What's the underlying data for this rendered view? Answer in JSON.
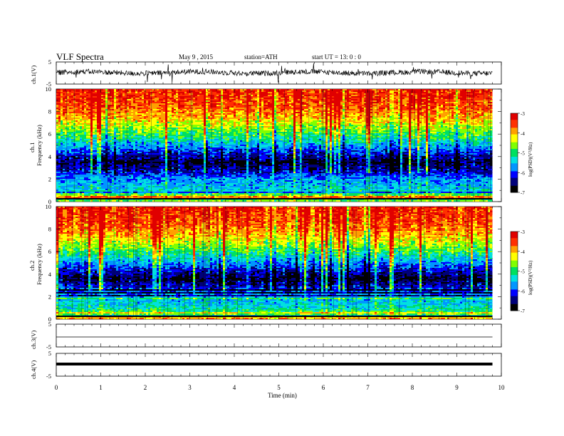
{
  "header": {
    "title": "VLF  Spectra",
    "date": "May 9  , 2015",
    "station": "station=ATH",
    "start": "start  UT  =     13: 0  : 0"
  },
  "chart_data": [
    {
      "type": "line",
      "panel": "ch1-waveform",
      "ylabel": "ch.1(V)",
      "yticks": [
        "5",
        "-5"
      ],
      "ylim": [
        -5,
        5
      ],
      "xlim": [
        0,
        10
      ],
      "data_extent_min": [
        0,
        9.8
      ],
      "description_values": {
        "baseline_v": 0.2,
        "typical_noise_amplitude_v": 1.2,
        "spike_max_v": 3.5
      }
    },
    {
      "type": "heatmap",
      "panel": "ch1-spectrogram",
      "ylabel": "Frequency  (kHz)",
      "channel_label": "ch.1",
      "yticks": [
        "0",
        "2",
        "4",
        "6",
        "8",
        "10"
      ],
      "ylim": [
        0,
        10
      ],
      "xlim": [
        0,
        10
      ],
      "data_extent_min": [
        0,
        9.8
      ],
      "colorbar": {
        "label": "log(PSD)(V²/Hz)",
        "ticks": [
          "-3",
          "-4",
          "-5",
          "-6",
          "-7"
        ],
        "range": [
          -7,
          -3
        ]
      },
      "profile_khz_logpsd": [
        [
          0,
          -3.8
        ],
        [
          0.5,
          -4.6
        ],
        [
          1,
          -5.4
        ],
        [
          2,
          -5.7
        ],
        [
          2.6,
          -6.2
        ],
        [
          3.5,
          -6.7
        ],
        [
          4.5,
          -6.0
        ],
        [
          5.5,
          -5.2
        ],
        [
          6.5,
          -4.6
        ],
        [
          7.5,
          -4.0
        ],
        [
          8.5,
          -3.6
        ],
        [
          10,
          -3.4
        ]
      ]
    },
    {
      "type": "heatmap",
      "panel": "ch2-spectrogram",
      "ylabel": "Frequency  (kHz)",
      "channel_label": "ch.2",
      "yticks": [
        "0",
        "2",
        "4",
        "6",
        "8",
        "10"
      ],
      "ylim": [
        0,
        10
      ],
      "xlim": [
        0,
        10
      ],
      "data_extent_min": [
        0,
        9.8
      ],
      "colorbar": {
        "label": "log(PSD)(V²/Hz)",
        "ticks": [
          "-3",
          "-4",
          "-5",
          "-6",
          "-7"
        ],
        "range": [
          -7,
          -3
        ]
      },
      "profile_khz_logpsd": [
        [
          0,
          -3.8
        ],
        [
          0.5,
          -4.8
        ],
        [
          1,
          -5.3
        ],
        [
          2,
          -5.6
        ],
        [
          3,
          -6.3
        ],
        [
          3.6,
          -6.7
        ],
        [
          4.5,
          -6.1
        ],
        [
          5.5,
          -5.3
        ],
        [
          6.5,
          -4.6
        ],
        [
          7.5,
          -4.0
        ],
        [
          8.5,
          -3.6
        ],
        [
          10,
          -3.4
        ]
      ]
    },
    {
      "type": "line",
      "panel": "ch3-waveform",
      "ylabel": "ch.3(V)",
      "yticks": [
        "5",
        "-5"
      ],
      "ylim": [
        -5,
        5
      ],
      "xlim": [
        0,
        10
      ],
      "data_extent_min": [
        0,
        9.8
      ],
      "description_values": {
        "baseline_v": 0.0
      }
    },
    {
      "type": "line",
      "panel": "ch4-waveform",
      "ylabel": "ch.4(V)",
      "yticks": [
        "5",
        "-5"
      ],
      "ylim": [
        -5,
        5
      ],
      "xlim": [
        0,
        10
      ],
      "data_extent_min": [
        0,
        9.8
      ],
      "description_values": {
        "baseline_v": 0.0
      }
    }
  ],
  "xaxis": {
    "label": "Time  (min)",
    "ticks": [
      "0",
      "1",
      "2",
      "3",
      "4",
      "5",
      "6",
      "7",
      "8",
      "9",
      "10"
    ]
  },
  "colors": {
    "scale": [
      "#000000",
      "#00007a",
      "#0000ff",
      "#0096ff",
      "#00e0e0",
      "#00e060",
      "#80ff00",
      "#ffff00",
      "#ffa000",
      "#ff3000",
      "#e00000",
      "#ffe0e0"
    ]
  }
}
